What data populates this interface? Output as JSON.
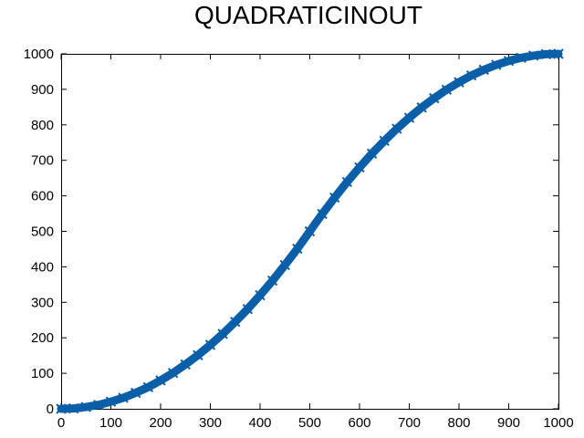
{
  "chart_data": {
    "type": "scatter",
    "title": "QUADRATICINOUT",
    "xlabel": "",
    "ylabel": "",
    "xlim": [
      0,
      1000
    ],
    "ylim": [
      0,
      1000
    ],
    "x_ticks": [
      "0",
      "100",
      "200",
      "300",
      "400",
      "500",
      "600",
      "700",
      "800",
      "900",
      "1000"
    ],
    "y_ticks": [
      "0",
      "100",
      "200",
      "300",
      "400",
      "500",
      "600",
      "700",
      "800",
      "900",
      "1000"
    ],
    "grid": false,
    "legend": "none",
    "marker": "x",
    "series": [
      {
        "color": "#0a5fa8",
        "x": [
          0,
          25,
          50,
          75,
          100,
          125,
          150,
          175,
          200,
          225,
          250,
          275,
          300,
          325,
          350,
          375,
          400,
          425,
          450,
          475,
          500,
          525,
          550,
          575,
          600,
          625,
          650,
          675,
          700,
          725,
          750,
          775,
          800,
          825,
          850,
          875,
          900,
          925,
          950,
          975,
          1000
        ],
        "y": [
          0,
          1,
          5,
          11,
          20,
          31,
          45,
          61,
          80,
          101,
          125,
          151,
          180,
          211,
          245,
          281,
          320,
          361,
          405,
          451,
          500,
          549,
          595,
          639,
          680,
          719,
          755,
          789,
          820,
          849,
          875,
          899,
          920,
          939,
          955,
          969,
          980,
          989,
          995,
          999,
          1000
        ]
      }
    ]
  }
}
